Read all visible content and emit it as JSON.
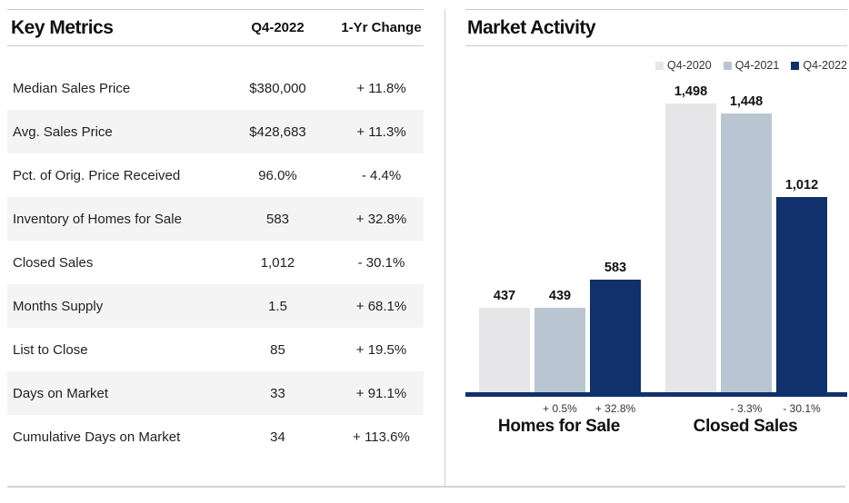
{
  "key_metrics": {
    "title": "Key Metrics",
    "columns": [
      "Q4-2022",
      "1-Yr Change"
    ],
    "rows": [
      {
        "label": "Median Sales Price",
        "value": "$380,000",
        "change": "+ 11.8%"
      },
      {
        "label": "Avg. Sales Price",
        "value": "$428,683",
        "change": "+ 11.3%"
      },
      {
        "label": "Pct. of Orig. Price Received",
        "value": "96.0%",
        "change": "- 4.4%"
      },
      {
        "label": "Inventory of Homes for Sale",
        "value": "583",
        "change": "+ 32.8%"
      },
      {
        "label": "Closed Sales",
        "value": "1,012",
        "change": "- 30.1%"
      },
      {
        "label": "Months Supply",
        "value": "1.5",
        "change": "+ 68.1%"
      },
      {
        "label": "List to Close",
        "value": "85",
        "change": "+ 19.5%"
      },
      {
        "label": "Days on Market",
        "value": "33",
        "change": "+ 91.1%"
      },
      {
        "label": "Cumulative Days on Market",
        "value": "34",
        "change": "+ 113.6%"
      }
    ]
  },
  "chart_data": {
    "type": "bar",
    "title": "Market Activity",
    "categories": [
      "Homes for Sale",
      "Closed Sales"
    ],
    "series": [
      {
        "name": "Q4-2020",
        "color": "#e6e6e8",
        "values": [
          437,
          1498
        ],
        "value_labels": [
          "437",
          "1,498"
        ],
        "pct_change_labels": [
          "",
          ""
        ]
      },
      {
        "name": "Q4-2021",
        "color": "#b9c6d2",
        "values": [
          439,
          1448
        ],
        "value_labels": [
          "439",
          "1,448"
        ],
        "pct_change_labels": [
          "+ 0.5%",
          "- 3.3%"
        ]
      },
      {
        "name": "Q4-2022",
        "color": "#10316b",
        "values": [
          583,
          1012
        ],
        "value_labels": [
          "583",
          "1,012"
        ],
        "pct_change_labels": [
          "+ 32.8%",
          "- 30.1%"
        ]
      }
    ],
    "ylim": [
      0,
      1500
    ],
    "grid": false,
    "legend_position": "top-right",
    "axis_color": "#10316b"
  }
}
